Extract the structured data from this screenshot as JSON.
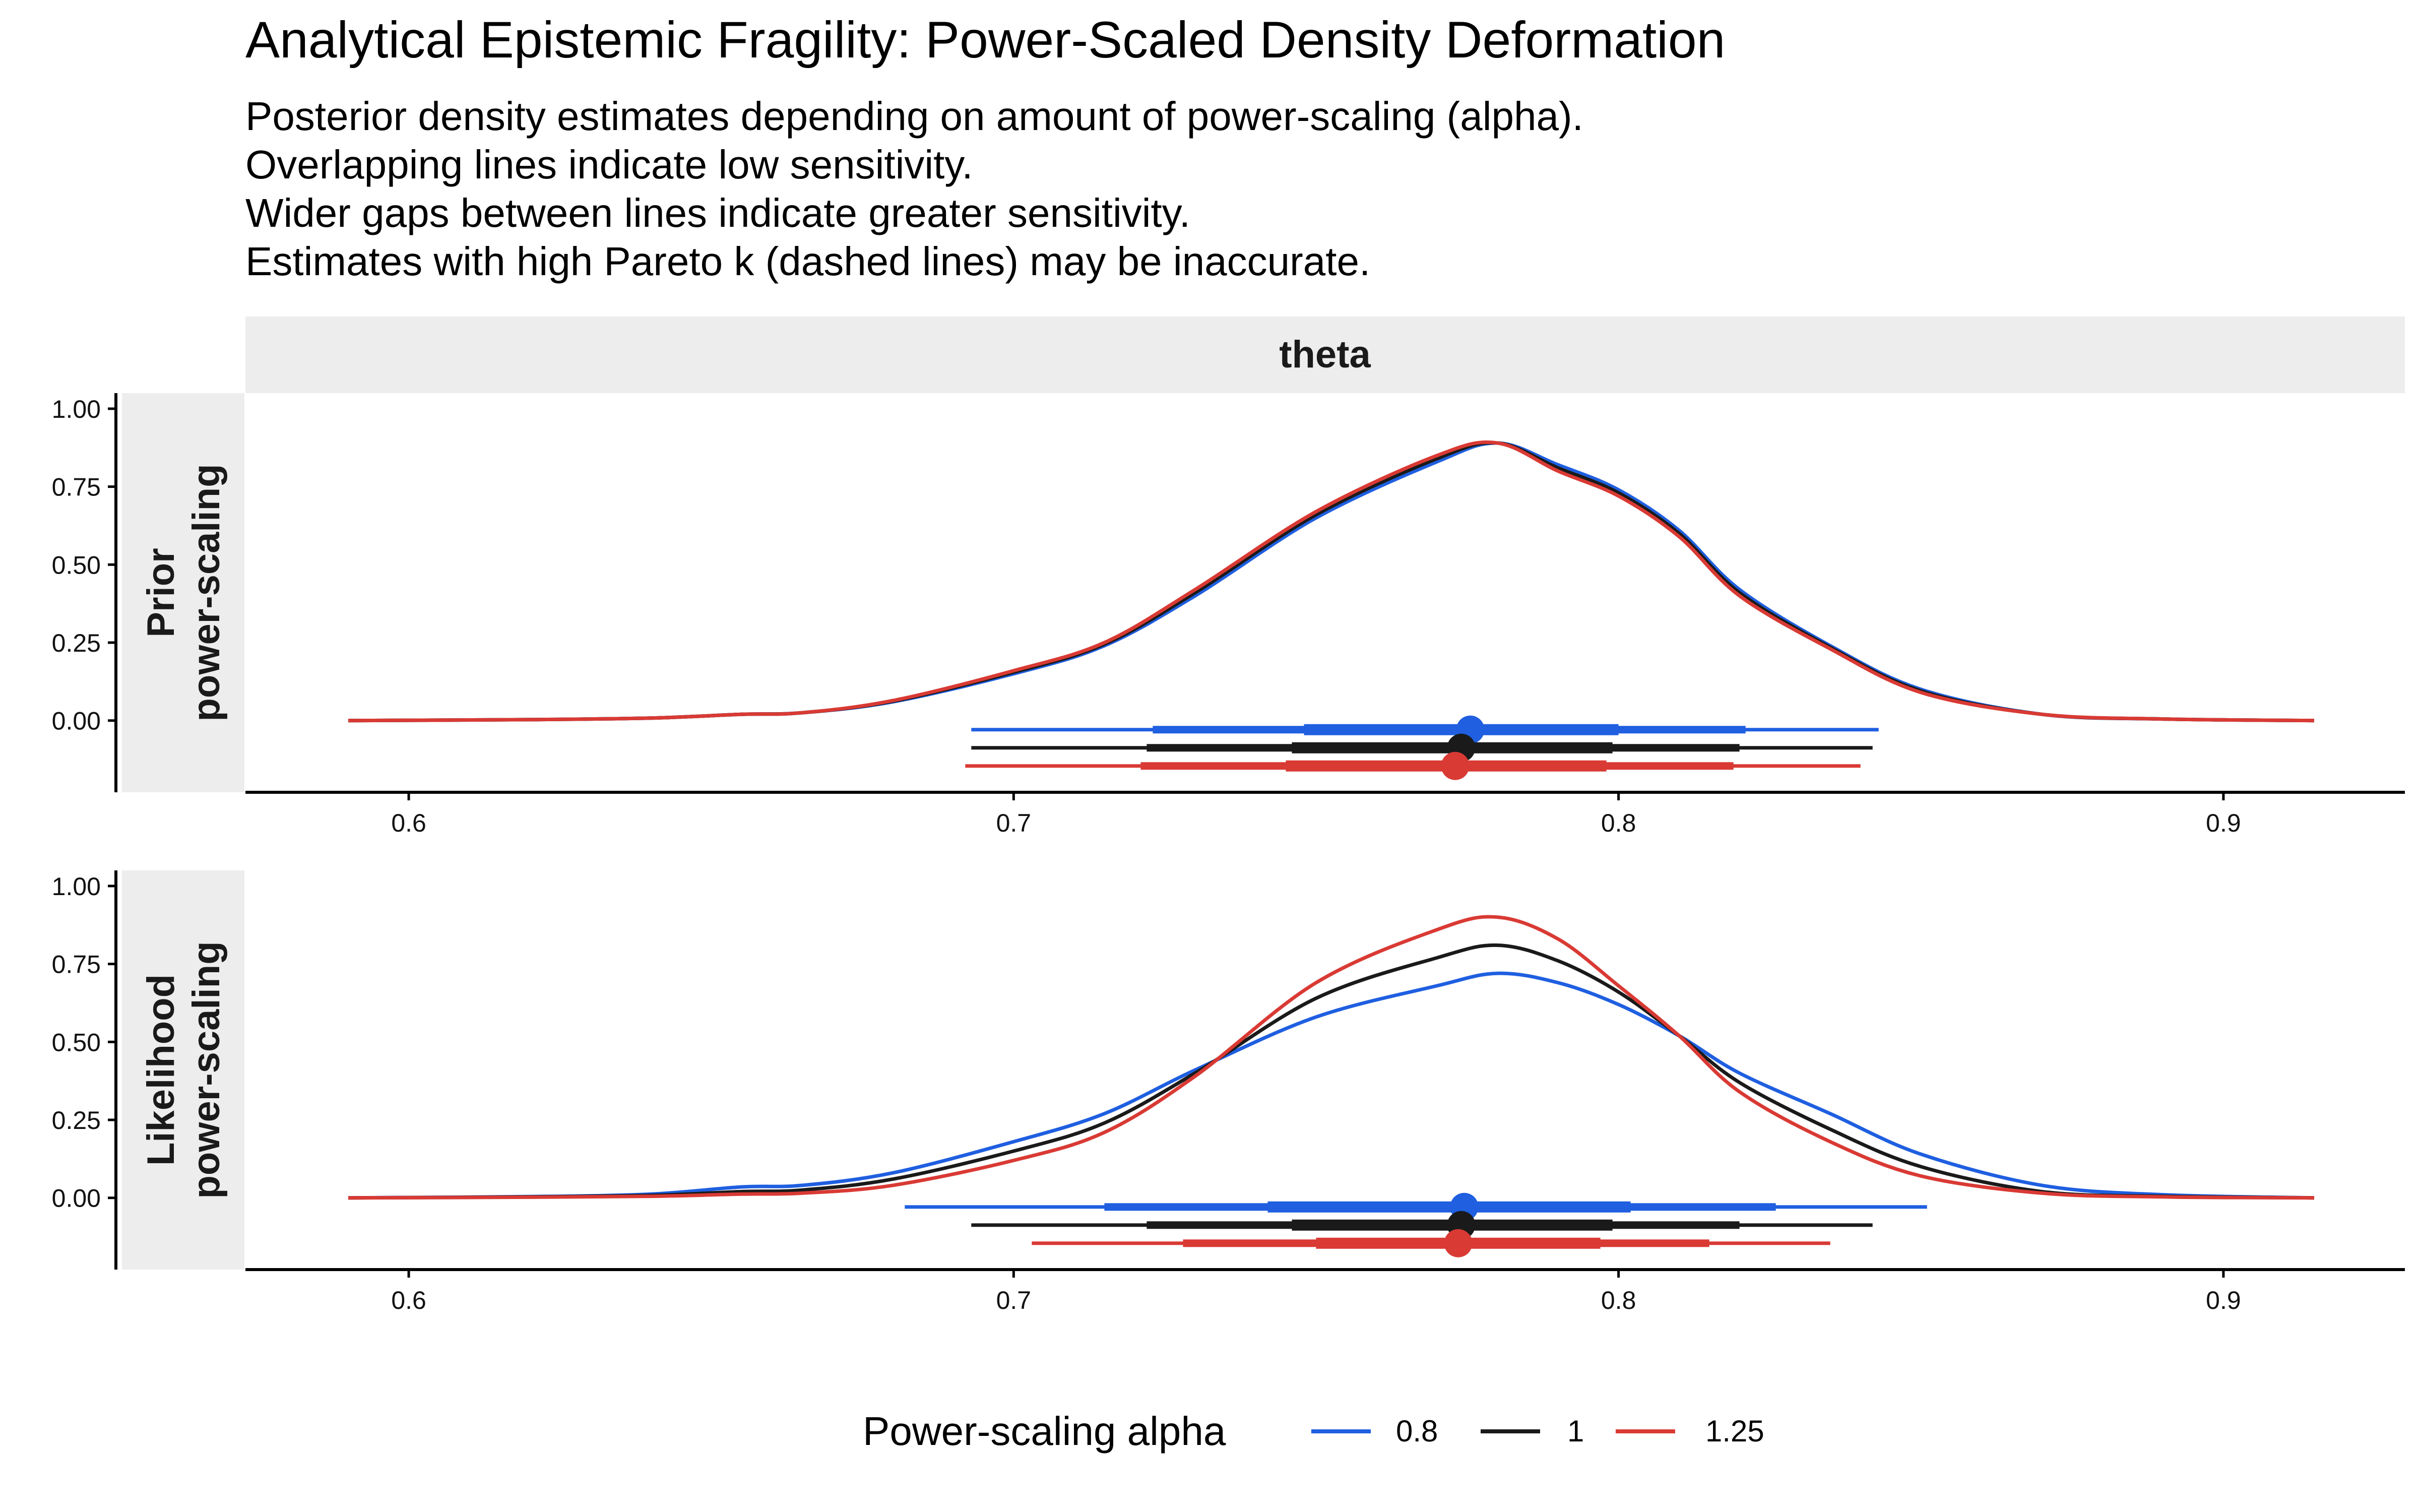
{
  "chart_data": {
    "type": "line",
    "title": "Analytical Epistemic Fragility: Power-Scaled Density Deformation",
    "subtitle_lines": [
      "Posterior density estimates depending on amount of power-scaling (alpha).",
      "Overlapping lines indicate low sensitivity.",
      "Wider gaps between lines indicate greater sensitivity.",
      "Estimates with high Pareto k (dashed lines) may be inaccurate."
    ],
    "facet_column": "theta",
    "xlim": [
      0.573,
      0.93
    ],
    "ylim": [
      -0.23,
      1.05
    ],
    "x_ticks": [
      0.6,
      0.7,
      0.8,
      0.9
    ],
    "x_tick_labels": [
      "0.6",
      "0.7",
      "0.8",
      "0.9"
    ],
    "y_ticks": [
      0,
      0.25,
      0.5,
      0.75,
      1.0
    ],
    "y_tick_labels": [
      "0.00",
      "0.25",
      "0.50",
      "0.75",
      "1.00"
    ],
    "grid": false,
    "legend": {
      "title": "Power-scaling alpha",
      "position": "bottom",
      "entries": [
        {
          "label": "0.8",
          "color": "#1f5fe0"
        },
        {
          "label": "1",
          "color": "#1a1a1a"
        },
        {
          "label": "1.25",
          "color": "#d93a34"
        }
      ]
    },
    "panels": [
      {
        "row_label": [
          "Prior",
          "power-scaling"
        ],
        "series": [
          {
            "name": "0.8",
            "color": "#1f5fe0",
            "x": [
              0.59,
              0.62,
              0.64,
              0.655,
              0.665,
              0.68,
              0.7,
              0.715,
              0.73,
              0.75,
              0.77,
              0.78,
              0.79,
              0.8,
              0.81,
              0.82,
              0.835,
              0.85,
              0.87,
              0.89,
              0.915
            ],
            "y": [
              0,
              0.003,
              0.008,
              0.02,
              0.025,
              0.06,
              0.15,
              0.24,
              0.4,
              0.65,
              0.83,
              0.89,
              0.82,
              0.74,
              0.61,
              0.42,
              0.24,
              0.1,
              0.02,
              0.005,
              0
            ],
            "interval": {
              "point": 0.7755,
              "inner": [
                0.748,
                0.8
              ],
              "middle": [
                0.723,
                0.821
              ],
              "outer": [
                0.693,
                0.843
              ]
            }
          },
          {
            "name": "1",
            "color": "#1a1a1a",
            "x": [
              0.59,
              0.62,
              0.64,
              0.655,
              0.665,
              0.68,
              0.7,
              0.715,
              0.73,
              0.75,
              0.77,
              0.78,
              0.79,
              0.8,
              0.81,
              0.82,
              0.835,
              0.85,
              0.87,
              0.89,
              0.915
            ],
            "y": [
              0,
              0.003,
              0.008,
              0.02,
              0.025,
              0.062,
              0.155,
              0.245,
              0.41,
              0.66,
              0.84,
              0.89,
              0.81,
              0.73,
              0.6,
              0.41,
              0.235,
              0.095,
              0.02,
              0.005,
              0
            ],
            "interval": {
              "point": 0.774,
              "inner": [
                0.746,
                0.799
              ],
              "middle": [
                0.722,
                0.82
              ],
              "outer": [
                0.693,
                0.842
              ]
            }
          },
          {
            "name": "1.25",
            "color": "#d93a34",
            "x": [
              0.59,
              0.62,
              0.64,
              0.655,
              0.665,
              0.68,
              0.7,
              0.715,
              0.73,
              0.75,
              0.77,
              0.78,
              0.79,
              0.8,
              0.81,
              0.82,
              0.835,
              0.85,
              0.87,
              0.89,
              0.915
            ],
            "y": [
              0,
              0.003,
              0.008,
              0.02,
              0.025,
              0.064,
              0.16,
              0.25,
              0.42,
              0.67,
              0.85,
              0.89,
              0.8,
              0.72,
              0.59,
              0.4,
              0.23,
              0.09,
              0.02,
              0.005,
              0
            ],
            "interval": {
              "point": 0.773,
              "inner": [
                0.745,
                0.798
              ],
              "middle": [
                0.721,
                0.819
              ],
              "outer": [
                0.692,
                0.84
              ]
            }
          }
        ]
      },
      {
        "row_label": [
          "Likelihood",
          "power-scaling"
        ],
        "series": [
          {
            "name": "0.8",
            "color": "#1f5fe0",
            "x": [
              0.59,
              0.62,
              0.64,
              0.655,
              0.665,
              0.68,
              0.7,
              0.715,
              0.73,
              0.75,
              0.77,
              0.78,
              0.79,
              0.8,
              0.81,
              0.82,
              0.835,
              0.85,
              0.87,
              0.89,
              0.915
            ],
            "y": [
              0,
              0.004,
              0.012,
              0.035,
              0.04,
              0.08,
              0.18,
              0.27,
              0.41,
              0.58,
              0.68,
              0.72,
              0.69,
              0.62,
              0.52,
              0.4,
              0.27,
              0.14,
              0.04,
              0.01,
              0
            ],
            "interval": {
              "point": 0.7745,
              "inner": [
                0.742,
                0.802
              ],
              "middle": [
                0.715,
                0.826
              ],
              "outer": [
                0.682,
                0.851
              ]
            }
          },
          {
            "name": "1",
            "color": "#1a1a1a",
            "x": [
              0.59,
              0.62,
              0.64,
              0.655,
              0.665,
              0.68,
              0.7,
              0.715,
              0.73,
              0.75,
              0.77,
              0.78,
              0.79,
              0.8,
              0.81,
              0.82,
              0.835,
              0.85,
              0.87,
              0.89,
              0.915
            ],
            "y": [
              0,
              0.003,
              0.008,
              0.02,
              0.025,
              0.06,
              0.15,
              0.24,
              0.4,
              0.64,
              0.77,
              0.81,
              0.76,
              0.66,
              0.52,
              0.37,
              0.22,
              0.1,
              0.02,
              0.005,
              0
            ],
            "interval": {
              "point": 0.774,
              "inner": [
                0.746,
                0.799
              ],
              "middle": [
                0.722,
                0.82
              ],
              "outer": [
                0.693,
                0.842
              ]
            }
          },
          {
            "name": "1.25",
            "color": "#d93a34",
            "x": [
              0.59,
              0.62,
              0.64,
              0.655,
              0.665,
              0.68,
              0.7,
              0.715,
              0.73,
              0.75,
              0.77,
              0.78,
              0.79,
              0.8,
              0.81,
              0.82,
              0.835,
              0.85,
              0.87,
              0.89,
              0.915
            ],
            "y": [
              0,
              0.002,
              0.005,
              0.012,
              0.015,
              0.04,
              0.12,
              0.21,
              0.39,
              0.69,
              0.86,
              0.9,
              0.83,
              0.68,
              0.52,
              0.34,
              0.18,
              0.07,
              0.015,
              0.003,
              0
            ],
            "interval": {
              "point": 0.7735,
              "inner": [
                0.75,
                0.797
              ],
              "middle": [
                0.728,
                0.815
              ],
              "outer": [
                0.703,
                0.835
              ]
            }
          }
        ]
      }
    ]
  }
}
